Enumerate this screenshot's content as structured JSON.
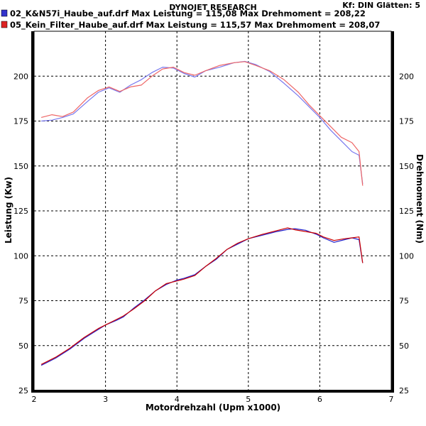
{
  "chart_data": {
    "type": "line",
    "title": "DYNOJET RESEARCH",
    "info_right": "Kf: DIN  Glätten: 5",
    "xlabel": "Motordrehzahl (Upm x1000)",
    "ylabel_left": "Leistung (Kw)",
    "ylabel_right": "Drehmoment (Nm)",
    "xlim": [
      2,
      7
    ],
    "ylim": [
      25,
      225
    ],
    "x_ticks": [
      "2",
      "3",
      "4",
      "5",
      "6",
      "7"
    ],
    "y_ticks": [
      "25",
      "50",
      "75",
      "100",
      "125",
      "150",
      "175",
      "200"
    ],
    "grid": true,
    "legend": [
      {
        "label": "02_K&N57i_Haube_auf.drf Max Leistung = 115,08     Max Drehmoment = 208,22",
        "color": "#3333cc"
      },
      {
        "label": "05_Kein_Filter_Haube_auf.drf Max Leistung = 115,57     Max Drehmoment = 208,07",
        "color": "#dd2222"
      }
    ],
    "series": [
      {
        "name": "02_K&N57i_Haube_auf.drf Leistung",
        "color": "#2222cc",
        "x": [
          2.1,
          2.3,
          2.5,
          2.7,
          2.9,
          3.0,
          3.15,
          3.25,
          3.4,
          3.55,
          3.7,
          3.85,
          4.0,
          4.1,
          4.25,
          4.4,
          4.55,
          4.7,
          4.85,
          5.0,
          5.2,
          5.4,
          5.55,
          5.65,
          5.8,
          5.95,
          6.05,
          6.2,
          6.35,
          6.45,
          6.55,
          6.6
        ],
        "y": [
          39,
          43,
          48,
          54,
          59,
          61.5,
          64,
          66,
          71,
          75.5,
          80.5,
          84,
          86.5,
          87.5,
          89.5,
          94,
          98,
          103.5,
          106.5,
          109.5,
          111.5,
          113.5,
          114.7,
          115.08,
          114.2,
          112,
          110,
          107.5,
          109,
          110,
          109,
          96
        ]
      },
      {
        "name": "05_Kein_Filter_Haube_auf.drf Leistung",
        "color": "#cc0000",
        "x": [
          2.1,
          2.3,
          2.5,
          2.7,
          2.9,
          3.0,
          3.15,
          3.25,
          3.4,
          3.55,
          3.7,
          3.85,
          4.0,
          4.1,
          4.25,
          4.4,
          4.55,
          4.7,
          4.85,
          5.0,
          5.2,
          5.4,
          5.55,
          5.65,
          5.8,
          5.95,
          6.05,
          6.2,
          6.35,
          6.45,
          6.55,
          6.6
        ],
        "y": [
          39.5,
          43.5,
          48.5,
          54.5,
          59.5,
          61.5,
          64.5,
          66.5,
          70.5,
          75,
          80.5,
          84.5,
          86,
          87,
          89,
          94,
          98.5,
          103.5,
          107,
          109.5,
          112,
          114,
          115.57,
          114.5,
          113.5,
          112.5,
          110.5,
          108.5,
          109.5,
          110,
          110.5,
          96
        ]
      },
      {
        "name": "02_K&N57i_Haube_auf.drf Drehmoment",
        "color": "#7777ee",
        "x": [
          2.1,
          2.25,
          2.4,
          2.55,
          2.75,
          2.9,
          3.05,
          3.2,
          3.35,
          3.5,
          3.65,
          3.8,
          3.95,
          4.1,
          4.25,
          4.4,
          4.6,
          4.8,
          4.95,
          5.1,
          5.3,
          5.5,
          5.7,
          5.85,
          6.0,
          6.15,
          6.3,
          6.45,
          6.55,
          6.6
        ],
        "y": [
          175,
          175.5,
          177,
          179,
          186,
          191,
          193.5,
          191,
          195,
          198,
          202,
          205,
          204.5,
          201.5,
          199.5,
          203,
          205,
          207.5,
          208.22,
          206.5,
          202.5,
          196,
          189,
          183,
          177,
          170,
          164,
          158,
          156,
          140
        ]
      },
      {
        "name": "05_Kein_Filter_Haube_auf.drf Drehmoment",
        "color": "#ee6666",
        "x": [
          2.1,
          2.25,
          2.4,
          2.55,
          2.75,
          2.9,
          3.05,
          3.2,
          3.35,
          3.5,
          3.65,
          3.8,
          3.95,
          4.1,
          4.25,
          4.4,
          4.6,
          4.8,
          4.95,
          5.1,
          5.3,
          5.5,
          5.7,
          5.85,
          6.0,
          6.15,
          6.3,
          6.45,
          6.55,
          6.6
        ],
        "y": [
          177,
          178.5,
          177.5,
          180,
          188,
          192,
          194,
          191.5,
          194,
          195,
          200,
          204,
          205,
          202,
          200.5,
          203,
          206,
          207.5,
          208.07,
          206,
          203,
          198,
          191,
          184,
          178,
          172,
          166,
          163,
          158,
          139
        ]
      }
    ]
  }
}
